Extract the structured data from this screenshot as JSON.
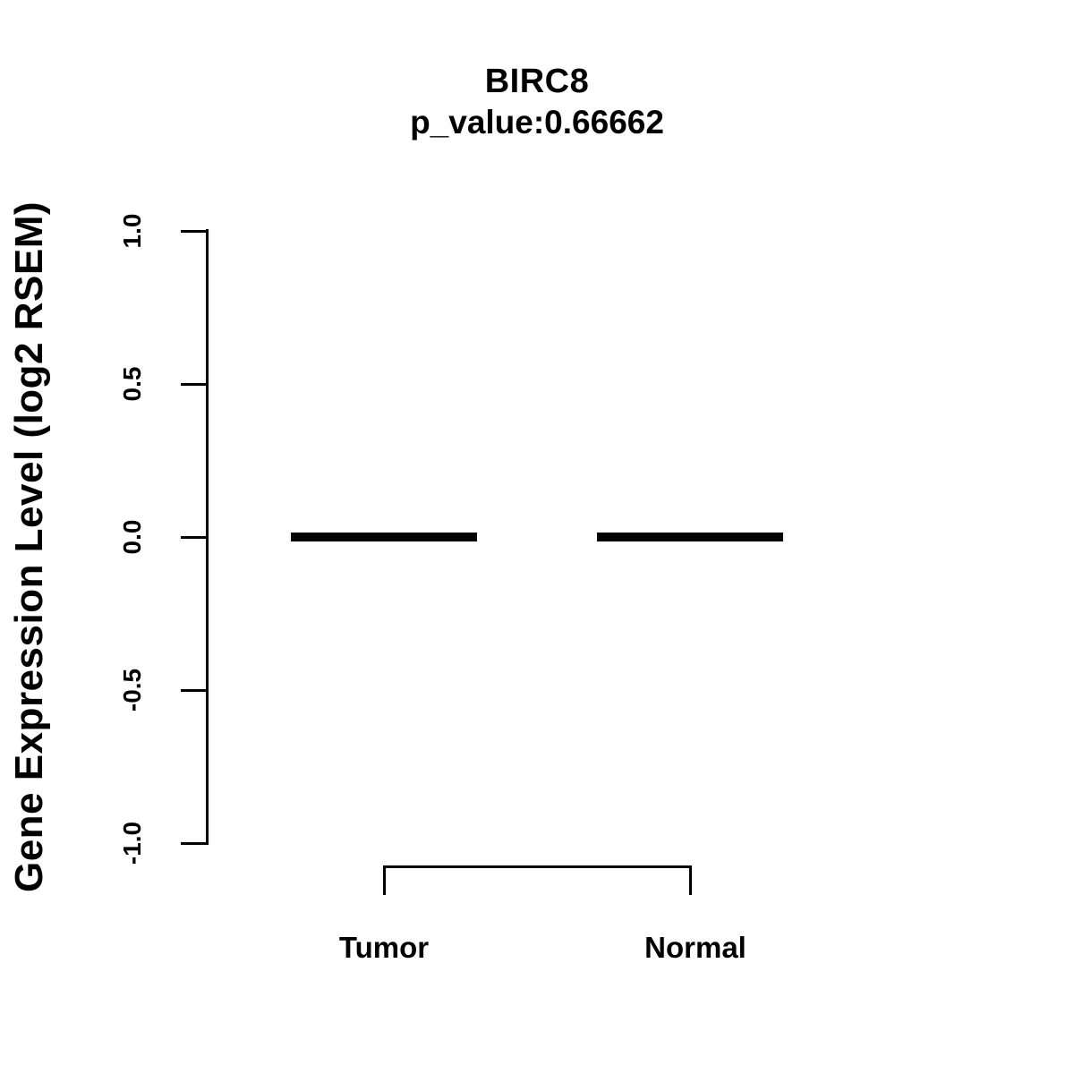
{
  "chart_data": {
    "type": "boxplot",
    "title": "BIRC8",
    "subtitle": "p_value:0.66662",
    "ylabel": "Gene Expression Level (log2 RSEM)",
    "ylim": [
      -1.0,
      1.0
    ],
    "yticks": [
      {
        "value": 1.0,
        "label": "1.0"
      },
      {
        "value": 0.5,
        "label": "0.5"
      },
      {
        "value": 0.0,
        "label": "0.0"
      },
      {
        "value": -0.5,
        "label": "-0.5"
      },
      {
        "value": -1.0,
        "label": "-1.0"
      }
    ],
    "categories": [
      "Tumor",
      "Normal"
    ],
    "series": [
      {
        "name": "Tumor",
        "median": 0.0,
        "q1": 0.0,
        "q3": 0.0,
        "min": 0.0,
        "max": 0.0
      },
      {
        "name": "Normal",
        "median": 0.0,
        "q1": 0.0,
        "q3": 0.0,
        "min": 0.0,
        "max": 0.0
      }
    ],
    "grid": false,
    "legend": "none",
    "annotations": [
      {
        "type": "comparison-bracket",
        "from": "Tumor",
        "to": "Normal"
      }
    ]
  },
  "colors": {
    "foreground": "#000000",
    "background": "#ffffff"
  }
}
